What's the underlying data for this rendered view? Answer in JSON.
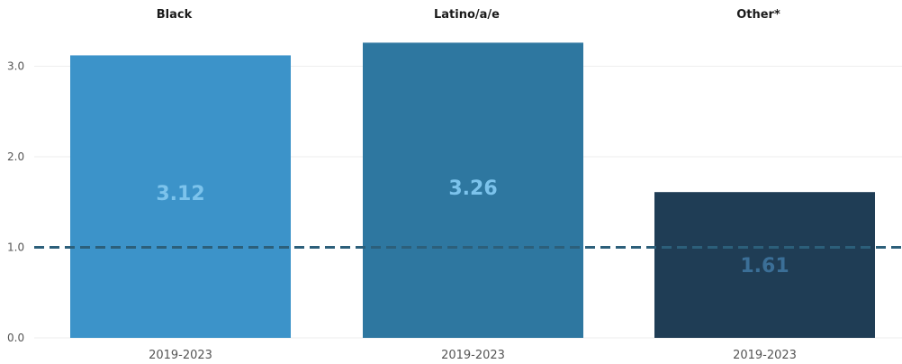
{
  "chart_data": {
    "type": "bar",
    "panels": [
      {
        "title": "Black",
        "categories": [
          "2019-2023"
        ],
        "values": [
          3.12
        ],
        "color": "#3c93c9",
        "label_color": "#7cc3ec"
      },
      {
        "title": "Latino/a/e",
        "categories": [
          "2019-2023"
        ],
        "values": [
          3.26
        ],
        "color": "#2e77a0",
        "label_color": "#7cc3ec"
      },
      {
        "title": "Other*",
        "categories": [
          "2019-2023"
        ],
        "values": [
          1.61
        ],
        "color": "#1f3d55",
        "label_color": "#3b6f97"
      }
    ],
    "y_ticks": [
      "0.0",
      "1.0",
      "2.0",
      "3.0"
    ],
    "ylim": [
      0,
      3.25
    ],
    "reference_line": {
      "value": 1.0,
      "style": "dashed",
      "color": "#2c5f7a"
    },
    "grid": true,
    "xlabel": "",
    "ylabel": ""
  }
}
